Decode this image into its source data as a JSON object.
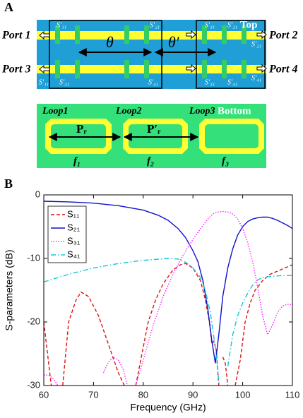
{
  "panel_a": {
    "label": "A",
    "top_label": "Top",
    "ports": [
      "Port 1",
      "Port 2",
      "Port 3",
      "Port 4"
    ],
    "angles": [
      "θ",
      "θ′"
    ],
    "s_labels": [
      "S′₁₁",
      "S′₂₁",
      "S′₃₁",
      "S′₂₁",
      "S′₂₁",
      "S′₁₁",
      "S′₃₁",
      "S′₄₁",
      "S′₃₁",
      "S′₄₁",
      "S′₄₁"
    ],
    "bottom_label": "Bottom",
    "loops": [
      "Loop1",
      "Loop2",
      "Loop3"
    ],
    "periods": [
      "Pᵣ",
      "P′ᵣ"
    ],
    "frequencies": [
      "f₁",
      "f₂",
      "f₃"
    ]
  },
  "panel_b": {
    "label": "B"
  },
  "chart_data": {
    "type": "line",
    "x_label": "Frequency (GHz)",
    "y_label": "S-parameters (dB)",
    "xlim": [
      60,
      110
    ],
    "xticks": [
      60,
      70,
      80,
      90,
      100,
      110
    ],
    "ylim": [
      -30,
      0
    ],
    "yticks": [
      0,
      -10,
      -20,
      -30
    ],
    "legend": "upper left",
    "series": [
      {
        "name": "S₁₁",
        "color": "#e01010",
        "style": "dashed",
        "x": [
          60,
          61.5,
          62.5,
          63.8,
          65,
          66.5,
          67.5,
          69,
          71,
          73,
          75,
          76.2,
          77,
          78.5,
          80,
          81,
          82.5,
          84,
          86,
          87.5,
          88.5,
          90,
          91.5,
          92.5,
          93.3,
          93.8,
          94.2,
          94.7,
          95.2,
          95.6,
          96,
          96.5,
          97,
          97.5,
          98.5,
          99.5,
          100.5,
          101.5,
          102.5,
          104,
          105.5,
          107,
          108.5,
          110
        ],
        "values": [
          -20,
          -30,
          null,
          -30,
          -20,
          -16.5,
          -15.3,
          -16,
          -19,
          -23.5,
          -28,
          -30,
          null,
          -30,
          -24,
          -20,
          -16.5,
          -14,
          -11.8,
          -11,
          -10.8,
          -11.5,
          -13.5,
          -16.5,
          -20,
          -23.5,
          -23,
          -24.5,
          -30,
          null,
          -25.5,
          -26.5,
          -30,
          null,
          -30,
          -26,
          -20,
          -17,
          -15,
          -13.5,
          -12.5,
          -12,
          -11.5,
          -11
        ]
      },
      {
        "name": "S₂₁",
        "color": "#1010d0",
        "style": "solid",
        "x": [
          60,
          65,
          70,
          75,
          80,
          83,
          85,
          87,
          88.5,
          90,
          91,
          92,
          93,
          93.8,
          94.5,
          95.2,
          96,
          97,
          98,
          99,
          100,
          101,
          102,
          103,
          104,
          105,
          106,
          107,
          108,
          109,
          110
        ],
        "values": [
          -1,
          -1.1,
          -1.3,
          -1.7,
          -2.4,
          -3.2,
          -4,
          -5.3,
          -6.7,
          -8.8,
          -10.5,
          -13.5,
          -18,
          -23,
          -26.5,
          -22,
          -16,
          -11.5,
          -8.5,
          -6.3,
          -5,
          -4.2,
          -3.8,
          -3.6,
          -3.5,
          -3.5,
          -3.7,
          -4,
          -4.4,
          -4.8,
          -5.3
        ]
      },
      {
        "name": "S₃₁",
        "color": "#ff22ff",
        "style": "dotted",
        "x": [
          60,
          61,
          62,
          62.8,
          71,
          72,
          73,
          74,
          75,
          76,
          76.8,
          77.5,
          78.5,
          80,
          82,
          84,
          86,
          88,
          90,
          92,
          93,
          94,
          95,
          96,
          97,
          98,
          99,
          100,
          101,
          102,
          103,
          104,
          105,
          106,
          107,
          108,
          109,
          110
        ],
        "values": [
          -28.3,
          -28.4,
          -29,
          -30,
          null,
          -28,
          -26.3,
          -25.5,
          -26,
          -27.5,
          -30,
          null,
          -30,
          -26,
          -20.5,
          -16,
          -12.5,
          -9.5,
          -7,
          -4.8,
          -3.8,
          -3,
          -2.7,
          -2.6,
          -2.7,
          -3,
          -3.8,
          -5.3,
          -7.5,
          -10.5,
          -14.5,
          -19,
          -22,
          -20.5,
          -18.5,
          -17.5,
          -17.2,
          -17.3
        ]
      },
      {
        "name": "S₄₁",
        "color": "#10c8d8",
        "style": "dashdot",
        "x": [
          60,
          65,
          70,
          75,
          80,
          85,
          87,
          88.5,
          90,
          91.5,
          92.5,
          93.5,
          94.5,
          95.3,
          96,
          97,
          98,
          99,
          100,
          101,
          102,
          103,
          104,
          106,
          108,
          110
        ],
        "values": [
          -13.7,
          -12.5,
          -11.5,
          -10.8,
          -10.3,
          -10,
          -10.1,
          -10.6,
          -11.5,
          -13,
          -15,
          -18.5,
          -24,
          -30,
          null,
          -27,
          -22,
          -19,
          -17,
          -15.5,
          -14.2,
          -13.4,
          -13,
          -12.8,
          -12.7,
          -12.7
        ]
      }
    ]
  }
}
